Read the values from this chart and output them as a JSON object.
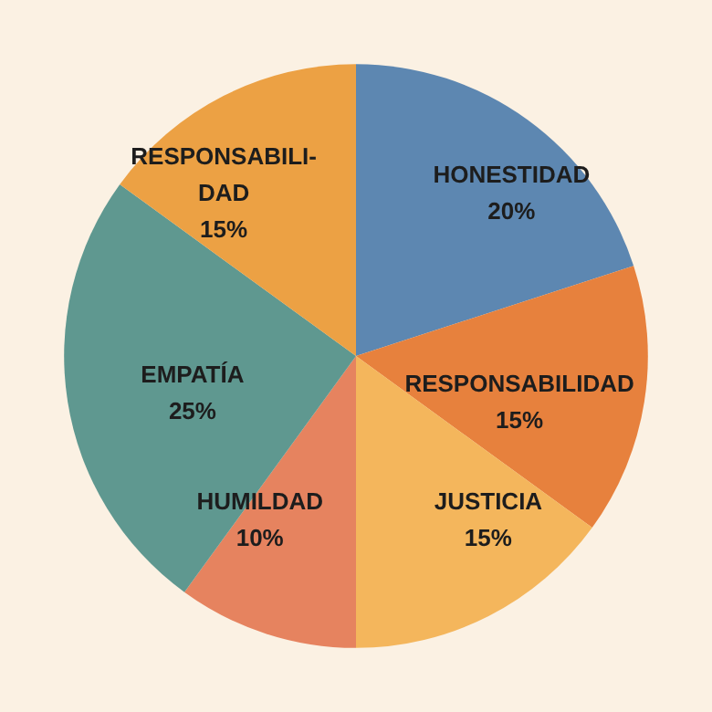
{
  "chart_data": {
    "type": "pie",
    "categories": [
      "HONESTIDAD",
      "RESPONSABILIDAD",
      "JUSTICIA",
      "HUMILDAD",
      "EMPATÍA",
      "RESPONSABILI-\nDAD"
    ],
    "values": [
      20,
      15,
      15,
      10,
      25,
      15
    ],
    "value_labels": [
      "20%",
      "15%",
      "15%",
      "10%",
      "25%",
      "15%"
    ],
    "colors": [
      "#5d87b1",
      "#e7813d",
      "#f4b65c",
      "#e6835f",
      "#5f9890",
      "#eca144"
    ],
    "legend": false
  }
}
